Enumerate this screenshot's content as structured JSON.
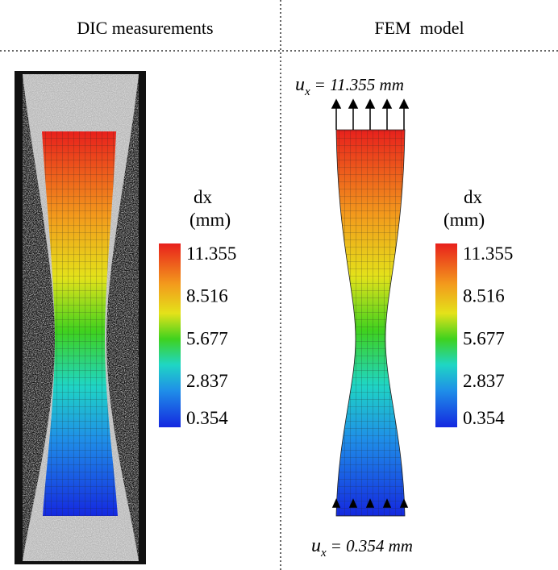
{
  "panels": [
    {
      "title": "DIC measurements",
      "colorbar": {
        "label_line1": "dx",
        "label_line2": "(mm)",
        "ticks": [
          11.355,
          8.516,
          5.677,
          2.837,
          0.354
        ]
      }
    },
    {
      "title": "FEM  model",
      "colorbar": {
        "label_line1": "dx",
        "label_line2": "(mm)",
        "ticks": [
          11.355,
          8.516,
          5.677,
          2.837,
          0.354
        ]
      },
      "top_load": {
        "symbol": "u",
        "subscript": "x",
        "text": "= 11.355 mm"
      },
      "bottom_load": {
        "symbol": "u",
        "subscript": "x",
        "text": "= 0.354 mm"
      }
    }
  ]
}
